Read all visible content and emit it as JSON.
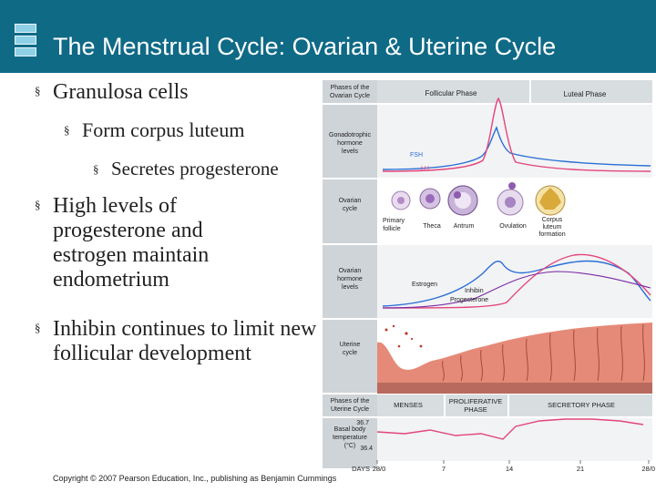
{
  "slide": {
    "title": "The Menstrual Cycle:  Ovarian & Uterine Cycle",
    "bullets": [
      "Granulosa cells",
      "Form corpus luteum",
      "Secretes progesterone",
      "High levels of progesterone and estrogen maintain endometrium",
      "Inhibin continues to limit new follicular development"
    ],
    "bullet_marker": "§",
    "copyright": "Copyright © 2007 Pearson Education, Inc., publishing as Benjamin Cummings"
  },
  "figure": {
    "row_labels": {
      "phases_ovarian": "Phases of the Ovarian Cycle",
      "gonadotrophic": "Gonadotrophic hormone levels",
      "ovarian_cycle": "Ovarian cycle",
      "ovarian_hormone": "Ovarian hormone levels",
      "uterine_cycle": "Uterine cycle",
      "phases_uterine": "Phases of the Uterine Cycle",
      "bbt": "Basal body temperature (°C)"
    },
    "ovarian_phases": [
      "Follicular Phase",
      "Luteal Phase"
    ],
    "hormones": {
      "fsh": "FSH",
      "lh": "LH",
      "estrogen": "Estrogen",
      "inhibin": "Inhibin",
      "progesterone": "Progesterone"
    },
    "ovarian_stages": [
      "Primary follicle",
      "Theca",
      "Antrum",
      "Ovulation",
      "Corpus luteum formation"
    ],
    "uterine_phases": [
      "MENSES",
      "PROLIFERATIVE PHASE",
      "SECRETORY PHASE"
    ],
    "temp_ticks": [
      "36.7",
      "36.4"
    ],
    "days_label": "DAYS",
    "days": [
      "28/0",
      "7",
      "14",
      "21",
      "28/0"
    ],
    "colors": {
      "fsh": "#2a6fd6",
      "lh": "#e2467a",
      "estrogen": "#2a6fd6",
      "progesterone": "#e2467a",
      "inhibin": "#7a2aa6",
      "temperature": "#e2467a",
      "panel": "#cfd4d8"
    }
  }
}
